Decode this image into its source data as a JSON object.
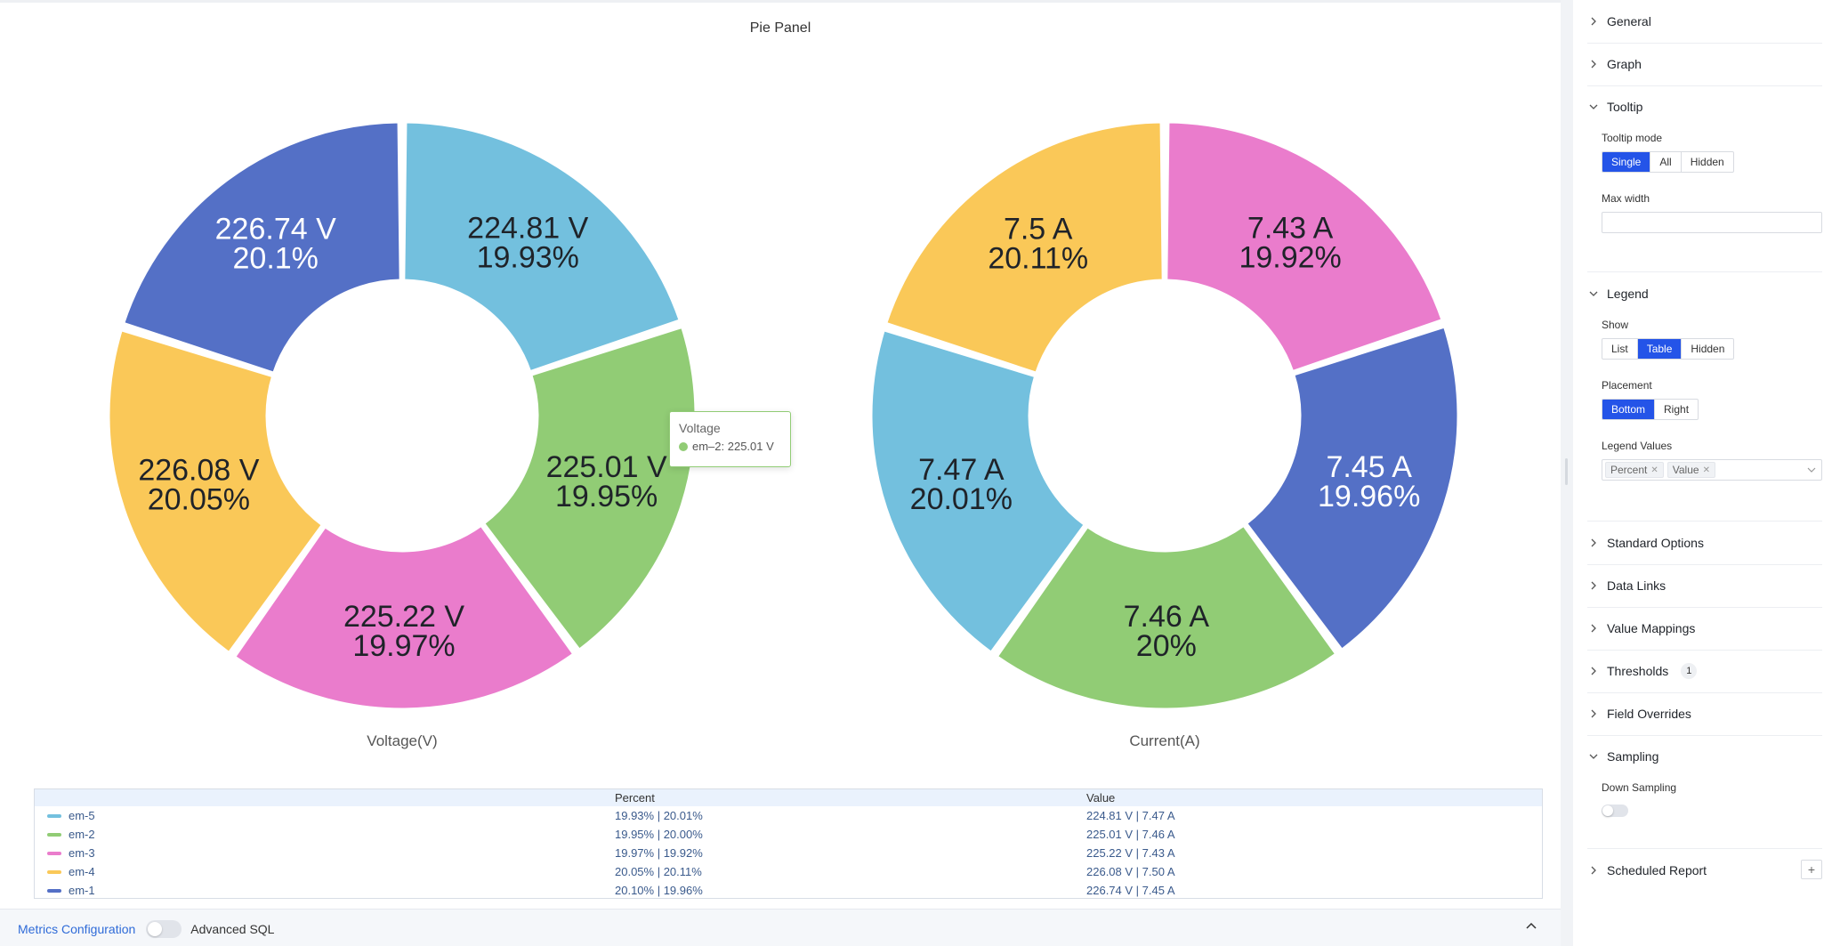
{
  "panel": {
    "title": "Pie Panel"
  },
  "chart_data": [
    {
      "type": "pie",
      "title": "Voltage(V)",
      "unit": "V",
      "series": [
        {
          "name": "em-5",
          "value": 224.81,
          "percent": 19.93,
          "value_label": "224.81 V",
          "percent_label": "19.93%",
          "color": "#73c0de"
        },
        {
          "name": "em-2",
          "value": 225.01,
          "percent": 19.95,
          "value_label": "225.01 V",
          "percent_label": "19.95%",
          "color": "#91cc75"
        },
        {
          "name": "em-3",
          "value": 225.22,
          "percent": 19.97,
          "value_label": "225.22 V",
          "percent_label": "19.97%",
          "color": "#ea7ccc"
        },
        {
          "name": "em-4",
          "value": 226.08,
          "percent": 20.05,
          "value_label": "226.08 V",
          "percent_label": "20.05%",
          "color": "#fac858"
        },
        {
          "name": "em-1",
          "value": 226.74,
          "percent": 20.1,
          "value_label": "226.74 V",
          "percent_label": "20.1%",
          "color": "#5470c6"
        }
      ]
    },
    {
      "type": "pie",
      "title": "Current(A)",
      "unit": "A",
      "series": [
        {
          "name": "em-3",
          "value": 7.43,
          "percent": 19.92,
          "value_label": "7.43 A",
          "percent_label": "19.92%",
          "color": "#ea7ccc"
        },
        {
          "name": "em-1",
          "value": 7.45,
          "percent": 19.96,
          "value_label": "7.45 A",
          "percent_label": "19.96%",
          "color": "#5470c6"
        },
        {
          "name": "em-2",
          "value": 7.46,
          "percent": 20.0,
          "value_label": "7.46 A",
          "percent_label": "20%",
          "color": "#91cc75"
        },
        {
          "name": "em-5",
          "value": 7.47,
          "percent": 20.01,
          "value_label": "7.47 A",
          "percent_label": "20.01%",
          "color": "#73c0de"
        },
        {
          "name": "em-4",
          "value": 7.5,
          "percent": 20.11,
          "value_label": "7.5 A",
          "percent_label": "20.11%",
          "color": "#fac858"
        }
      ]
    }
  ],
  "tooltip": {
    "title": "Voltage",
    "text": "em–2: 225.01 V",
    "color": "#91cc75"
  },
  "legend_table": {
    "headers": {
      "name": "",
      "percent": "Percent",
      "value": "Value"
    },
    "rows": [
      {
        "name": "em-5",
        "color": "#73c0de",
        "percent": "19.93% | 20.01%",
        "value": "224.81 V | 7.47 A"
      },
      {
        "name": "em-2",
        "color": "#91cc75",
        "percent": "19.95% | 20.00%",
        "value": "225.01 V | 7.46 A"
      },
      {
        "name": "em-3",
        "color": "#ea7ccc",
        "percent": "19.97% | 19.92%",
        "value": "225.22 V | 7.43 A"
      },
      {
        "name": "em-4",
        "color": "#fac858",
        "percent": "20.05% | 20.11%",
        "value": "226.08 V | 7.50 A"
      },
      {
        "name": "em-1",
        "color": "#5470c6",
        "percent": "20.10% | 19.96%",
        "value": "226.74 V | 7.45 A"
      }
    ]
  },
  "bottom_bar": {
    "metrics_label": "Metrics Configuration",
    "advanced_sql_label": "Advanced SQL"
  },
  "sidebar": {
    "general": "General",
    "graph": "Graph",
    "tooltip": {
      "title": "Tooltip",
      "mode_label": "Tooltip mode",
      "modes": [
        "Single",
        "All",
        "Hidden"
      ],
      "mode_selected": "Single",
      "max_width_label": "Max width",
      "max_width_value": ""
    },
    "legend": {
      "title": "Legend",
      "show_label": "Show",
      "show_options": [
        "List",
        "Table",
        "Hidden"
      ],
      "show_selected": "Table",
      "placement_label": "Placement",
      "placement_options": [
        "Bottom",
        "Right"
      ],
      "placement_selected": "Bottom",
      "values_label": "Legend Values",
      "values_tags": [
        "Percent",
        "Value"
      ]
    },
    "standard_options": "Standard Options",
    "data_links": "Data Links",
    "value_mappings": "Value Mappings",
    "thresholds": {
      "title": "Thresholds",
      "count": "1"
    },
    "field_overrides": "Field Overrides",
    "sampling": {
      "title": "Sampling",
      "down_sampling_label": "Down Sampling"
    },
    "scheduled_report": {
      "title": "Scheduled Report",
      "add": "+"
    },
    "colors": {
      "accent": "#2454e8"
    }
  }
}
